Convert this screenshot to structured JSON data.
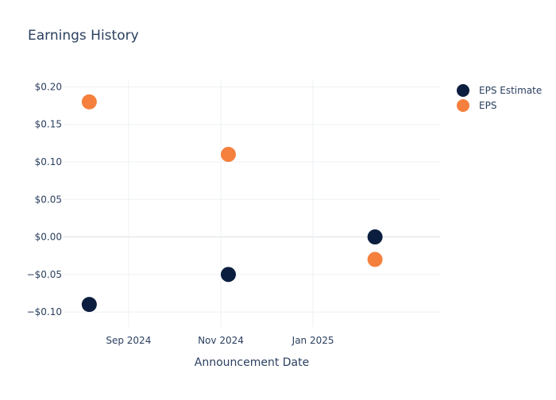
{
  "chart_data": {
    "type": "scatter",
    "title": "Earnings History",
    "xlabel": "Announcement Date",
    "ylabel": "",
    "x_ticks": [
      {
        "date": "2024-09-01",
        "label": "Sep 2024"
      },
      {
        "date": "2024-11-01",
        "label": "Nov 2024"
      },
      {
        "date": "2025-01-01",
        "label": "Jan 2025"
      }
    ],
    "xlim": [
      "2024-07-20",
      "2025-03-26"
    ],
    "y_ticks": [
      {
        "value": 0.2,
        "label": "$0.20"
      },
      {
        "value": 0.15,
        "label": "$0.15"
      },
      {
        "value": 0.1,
        "label": "$0.10"
      },
      {
        "value": 0.05,
        "label": "$0.05"
      },
      {
        "value": 0.0,
        "label": "$0.00"
      },
      {
        "value": -0.05,
        "label": "−$0.05"
      },
      {
        "value": -0.1,
        "label": "−$0.10"
      }
    ],
    "ylim": [
      -0.12,
      0.21
    ],
    "grid": true,
    "legend": "top-right",
    "series": [
      {
        "name": "EPS Estimate",
        "color": "#0b1e3f",
        "points": [
          {
            "x": "2024-08-06",
            "y": -0.09
          },
          {
            "x": "2024-11-06",
            "y": -0.05
          },
          {
            "x": "2025-02-11",
            "y": 0.0
          }
        ]
      },
      {
        "name": "EPS",
        "color": "#f5803e",
        "points": [
          {
            "x": "2024-08-06",
            "y": 0.18
          },
          {
            "x": "2024-11-06",
            "y": 0.11
          },
          {
            "x": "2025-02-11",
            "y": -0.03
          }
        ]
      }
    ]
  }
}
